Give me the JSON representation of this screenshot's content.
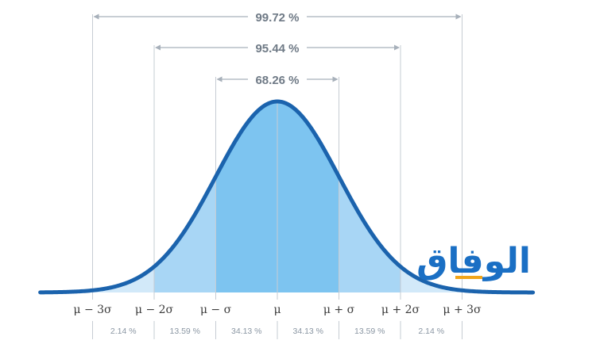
{
  "chart_data": {
    "type": "area",
    "x_range": [
      -3.85,
      4.15
    ],
    "tick_labels": [
      "μ − 3σ",
      "μ − 2σ",
      "μ − σ",
      "μ",
      "μ + σ",
      "μ + 2σ",
      "μ + 3σ"
    ],
    "tick_positions": [
      -3,
      -2,
      -1,
      0,
      1,
      2,
      3
    ],
    "ranges": [
      {
        "label": "99.72 %",
        "from": -3,
        "to": 3
      },
      {
        "label": "95.44 %",
        "from": -2,
        "to": 2
      },
      {
        "label": "68.26 %",
        "from": -1,
        "to": 1
      }
    ],
    "segments": [
      {
        "from": -3,
        "to": -2,
        "percent": 2.14,
        "label": "2.14 %"
      },
      {
        "from": -2,
        "to": -1,
        "percent": 13.59,
        "label": "13.59 %"
      },
      {
        "from": -1,
        "to": 0,
        "percent": 34.13,
        "label": "34.13 %"
      },
      {
        "from": 0,
        "to": 1,
        "percent": 34.13,
        "label": "34.13 %"
      },
      {
        "from": 1,
        "to": 2,
        "percent": 13.59,
        "label": "13.59 %"
      },
      {
        "from": 2,
        "to": 3,
        "percent": 2.14,
        "label": "2.14 %"
      }
    ],
    "colors": {
      "curve": "#1b63ad",
      "fill_outer": "#d2e9f9",
      "fill_middle": "#a8d6f5",
      "fill_inner": "#7dc4f0",
      "guide": "#c6ccd3",
      "arrow": "#a7b0ba"
    }
  },
  "watermark": {
    "text": "الوفاق",
    "colors": [
      "#1a6fc4",
      "#f2a51a"
    ]
  }
}
